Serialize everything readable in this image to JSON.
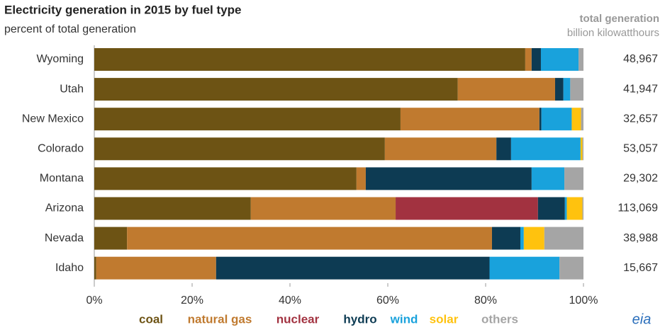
{
  "chart_data": {
    "type": "stacked_bar_horizontal",
    "title": "Electricity generation in 2015 by fuel type",
    "subtitle": "percent of total generation",
    "categories": [
      "Wyoming",
      "Utah",
      "New Mexico",
      "Colorado",
      "Montana",
      "Arizona",
      "Nevada",
      "Idaho"
    ],
    "series": [
      {
        "name": "coal",
        "color": "#6d5314",
        "values": [
          88.1,
          74.3,
          62.6,
          59.4,
          53.6,
          32.0,
          6.7,
          0.4
        ]
      },
      {
        "name": "natural gas",
        "color": "#c07a2f",
        "values": [
          1.3,
          19.9,
          28.4,
          22.8,
          1.9,
          29.6,
          74.6,
          24.5
        ]
      },
      {
        "name": "nuclear",
        "color": "#a23240",
        "values": [
          0,
          0,
          0,
          0,
          0,
          29.1,
          0,
          0
        ]
      },
      {
        "name": "hydro",
        "color": "#0d3b53",
        "values": [
          1.9,
          1.7,
          0.4,
          3.0,
          33.9,
          5.5,
          5.8,
          55.9
        ]
      },
      {
        "name": "wind",
        "color": "#19a2dc",
        "values": [
          7.7,
          1.4,
          6.2,
          14.2,
          6.7,
          0.4,
          0.7,
          14.3
        ]
      },
      {
        "name": "solar",
        "color": "#ffc20e",
        "values": [
          0,
          0,
          1.9,
          0.4,
          0,
          3.2,
          4.2,
          0
        ]
      },
      {
        "name": "others",
        "color": "#a5a5a5",
        "values": [
          1.0,
          2.7,
          0.5,
          0.2,
          3.9,
          0.2,
          8.0,
          4.9
        ]
      }
    ],
    "xlim": [
      0,
      100
    ],
    "xticks": [
      {
        "value": 0,
        "label": "0%"
      },
      {
        "value": 20,
        "label": "20%"
      },
      {
        "value": 40,
        "label": "40%"
      },
      {
        "value": 60,
        "label": "60%"
      },
      {
        "value": 80,
        "label": "80%"
      },
      {
        "value": 100,
        "label": "100%"
      }
    ],
    "grid": false,
    "legend": "bottom",
    "totals": {
      "title": "total generation",
      "unit": "billion kilowatthours",
      "values": [
        48967,
        41947,
        32657,
        53057,
        29302,
        113069,
        38988,
        15667
      ],
      "value_labels": [
        "48,967",
        "41,947",
        "32,657",
        "53,057",
        "29,302",
        "113,069",
        "38,988",
        "15,667"
      ]
    },
    "logo": "eia"
  }
}
